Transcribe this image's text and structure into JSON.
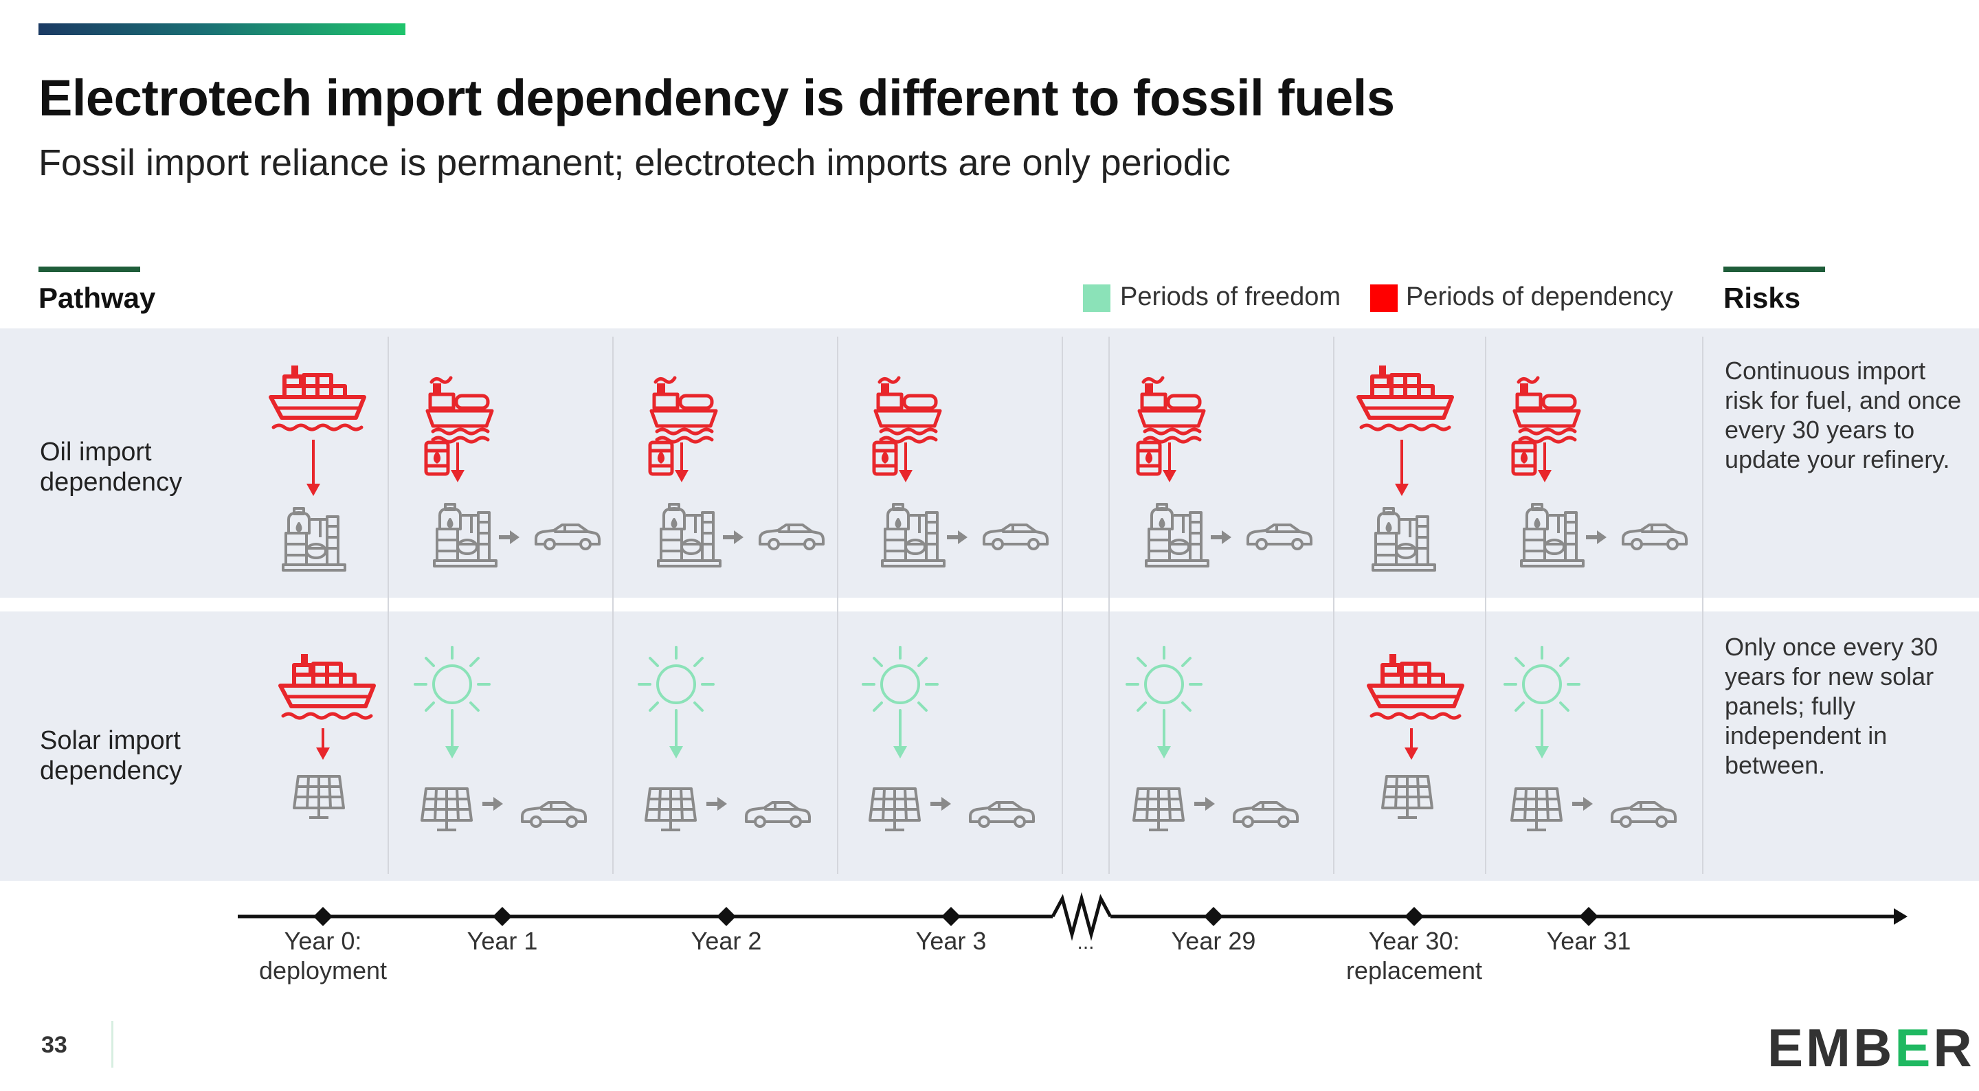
{
  "header": {
    "title": "Electrotech import dependency is different to fossil fuels",
    "subtitle": "Fossil import reliance is permanent; electrotech imports are only periodic"
  },
  "sections": {
    "pathway": "Pathway",
    "risks": "Risks"
  },
  "legend": [
    {
      "label": "Periods of freedom",
      "color": "#8be2b8"
    },
    {
      "label": "Periods of dependency",
      "color": "#ff0000"
    }
  ],
  "rows": [
    {
      "label": "Oil import dependency",
      "risk": "Continuous import risk for fuel, and once every 30 years to update your refinery.",
      "cells": [
        "import-infra",
        "import-fuel",
        "import-fuel",
        "import-fuel",
        "import-fuel",
        "import-infra",
        "import-fuel"
      ]
    },
    {
      "label": "Solar import dependency",
      "risk": "Only once every 30 years for new solar panels; fully independent in between.",
      "cells": [
        "import-infra",
        "free",
        "free",
        "free",
        "free",
        "import-infra",
        "free"
      ]
    }
  ],
  "timeline": {
    "ticks": [
      {
        "line1": "Year 0:",
        "line2": "deployment"
      },
      {
        "line1": "Year 1",
        "line2": ""
      },
      {
        "line1": "Year 2",
        "line2": ""
      },
      {
        "line1": "Year 3",
        "line2": ""
      },
      {
        "line1": "...",
        "line2": ""
      },
      {
        "line1": "Year 29",
        "line2": ""
      },
      {
        "line1": "Year 30:",
        "line2": "replacement"
      },
      {
        "line1": "Year 31",
        "line2": ""
      }
    ]
  },
  "colors": {
    "dependency": "#e8262b",
    "freedom": "#8be2b8",
    "icon_gray": "#8a8a8a",
    "band": "#eaedf3",
    "accent": "#1f5d3a"
  },
  "icons": [
    "ship-icon",
    "tanker-icon",
    "oil-barrel-icon",
    "refinery-icon",
    "car-icon",
    "sun-icon",
    "solar-panel-icon",
    "arrow-right-icon"
  ],
  "footer": {
    "page": "33",
    "logo": "EMB",
    "logo_e": "E",
    "logo_end": "R"
  }
}
